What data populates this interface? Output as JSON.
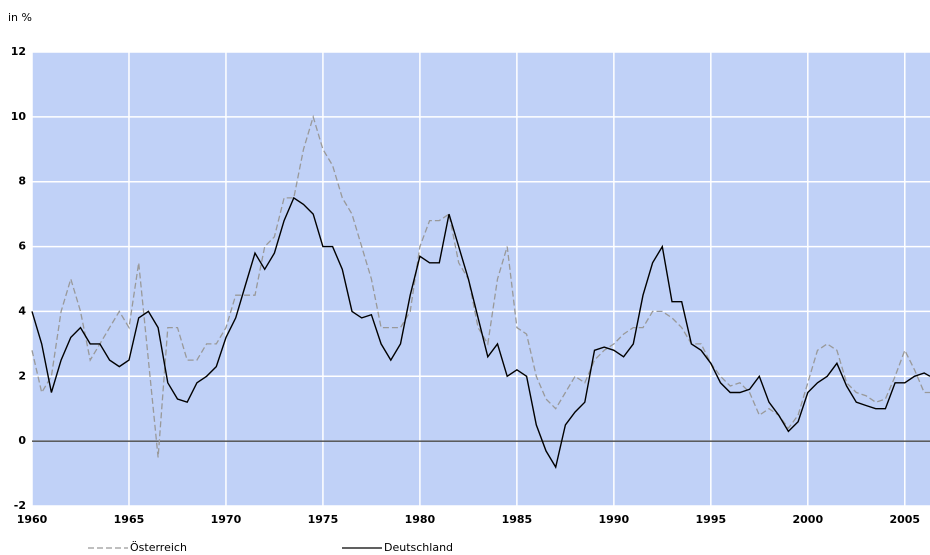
{
  "chart_data": {
    "type": "line",
    "ylabel": "in %",
    "x": [
      1960,
      1960.5,
      1961,
      1961.5,
      1962,
      1962.5,
      1963,
      1963.5,
      1964,
      1964.5,
      1965,
      1965.5,
      1966,
      1966.5,
      1967,
      1967.5,
      1968,
      1968.5,
      1969,
      1969.5,
      1970,
      1970.5,
      1971,
      1971.5,
      1972,
      1972.5,
      1973,
      1973.5,
      1974,
      1974.5,
      1975,
      1975.5,
      1976,
      1976.5,
      1977,
      1977.5,
      1978,
      1978.5,
      1979,
      1979.5,
      1980,
      1980.5,
      1981,
      1981.5,
      1982,
      1982.5,
      1983,
      1983.5,
      1984,
      1984.5,
      1985,
      1985.5,
      1986,
      1986.5,
      1987,
      1987.5,
      1988,
      1988.5,
      1989,
      1989.5,
      1990,
      1990.5,
      1991,
      1991.5,
      1992,
      1992.5,
      1993,
      1993.5,
      1994,
      1994.5,
      1995,
      1995.5,
      1996,
      1996.5,
      1997,
      1997.5,
      1998,
      1998.5,
      1999,
      1999.5,
      2000,
      2000.5,
      2001,
      2001.5,
      2002,
      2002.5,
      2003,
      2003.5,
      2004,
      2004.5,
      2005,
      2005.5,
      2006,
      2006.3
    ],
    "series": [
      {
        "name": "Österreich",
        "color": "#999999",
        "dashed": true,
        "values": [
          2.8,
          1.5,
          2.0,
          4.0,
          5.0,
          4.0,
          2.5,
          3.0,
          3.5,
          4.0,
          3.5,
          5.5,
          2.5,
          -0.5,
          3.5,
          3.5,
          2.5,
          2.5,
          3.0,
          3.0,
          3.5,
          4.5,
          4.5,
          4.5,
          6.0,
          6.3,
          7.5,
          7.5,
          9.0,
          10.0,
          9.0,
          8.5,
          7.5,
          7.0,
          6.0,
          5.0,
          3.5,
          3.5,
          3.5,
          4.0,
          6.0,
          6.8,
          6.8,
          7.0,
          5.5,
          5.0,
          3.5,
          3.0,
          5.0,
          6.0,
          3.5,
          3.3,
          2.0,
          1.3,
          1.0,
          1.5,
          2.0,
          1.8,
          2.5,
          2.8,
          3.0,
          3.3,
          3.5,
          3.5,
          4.0,
          4.0,
          3.8,
          3.5,
          3.0,
          3.0,
          2.4,
          2.0,
          1.7,
          1.8,
          1.5,
          0.8,
          1.0,
          0.8,
          0.4,
          0.8,
          1.8,
          2.8,
          3.0,
          2.8,
          1.8,
          1.5,
          1.4,
          1.2,
          1.3,
          2.0,
          2.8,
          2.2,
          1.5,
          1.5
        ]
      },
      {
        "name": "Deutschland",
        "color": "#000000",
        "dashed": false,
        "values": [
          4.0,
          3.0,
          1.5,
          2.5,
          3.2,
          3.5,
          3.0,
          3.0,
          2.5,
          2.3,
          2.5,
          3.8,
          4.0,
          3.5,
          1.8,
          1.3,
          1.2,
          1.8,
          2.0,
          2.3,
          3.2,
          3.8,
          4.8,
          5.8,
          5.3,
          5.8,
          6.8,
          7.5,
          7.3,
          7.0,
          6.0,
          6.0,
          5.3,
          4.0,
          3.8,
          3.9,
          3.0,
          2.5,
          3.0,
          4.5,
          5.7,
          5.5,
          5.5,
          7.0,
          6.0,
          5.0,
          3.8,
          2.6,
          3.0,
          2.0,
          2.2,
          2.0,
          0.5,
          -0.3,
          -0.8,
          0.5,
          0.9,
          1.2,
          2.8,
          2.9,
          2.8,
          2.6,
          3.0,
          4.5,
          5.5,
          6.0,
          4.3,
          4.3,
          3.0,
          2.8,
          2.4,
          1.8,
          1.5,
          1.5,
          1.6,
          2.0,
          1.2,
          0.8,
          0.3,
          0.6,
          1.5,
          1.8,
          2.0,
          2.4,
          1.7,
          1.2,
          1.1,
          1.0,
          1.0,
          1.8,
          1.8,
          2.0,
          2.1,
          2.0
        ]
      }
    ],
    "xlim": [
      1960,
      2006.3
    ],
    "ylim": [
      -2,
      12
    ],
    "xticks": [
      1960,
      1965,
      1970,
      1975,
      1980,
      1985,
      1990,
      1995,
      2000,
      2005
    ],
    "yticks": [
      -2,
      0,
      2,
      4,
      6,
      8,
      10,
      12
    ],
    "grid": true,
    "plot_background": "#c0d1f7",
    "legend": "bottom"
  }
}
